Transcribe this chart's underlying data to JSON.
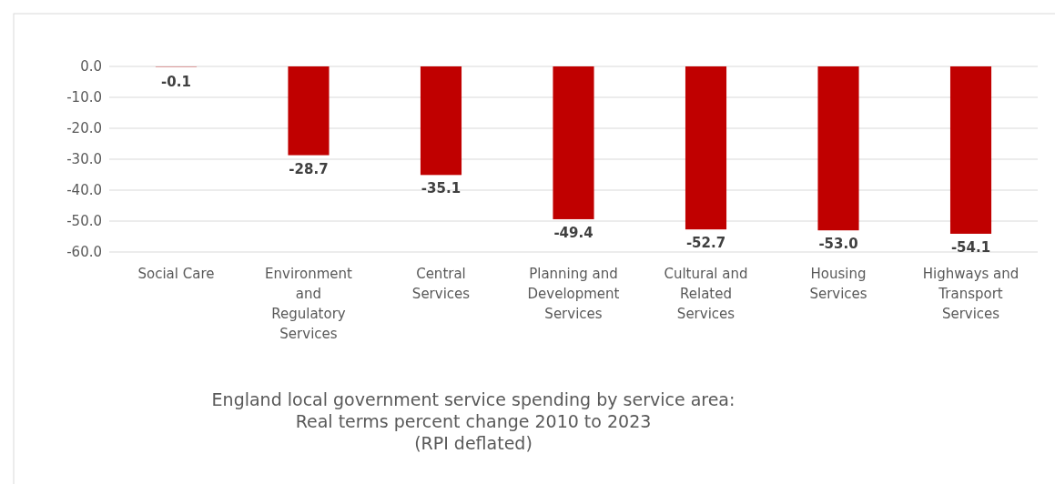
{
  "chart_data": {
    "type": "bar",
    "title": "England local government service spending by service area:\nReal terms percent change 2010 to 2023\n(RPI deflated)",
    "categories": [
      "Social Care",
      "Environment and Regulatory Services",
      "Central Services",
      "Planning and Development Services",
      "Cultural and Related Services",
      "Housing Services",
      "Highways and Transport Services"
    ],
    "values": [
      -0.1,
      -28.7,
      -35.1,
      -49.4,
      -52.7,
      -53.0,
      -54.1
    ],
    "value_labels": [
      "-0.1",
      "-28.7",
      "-35.1",
      "-49.4",
      "-52.7",
      "-53.0",
      "-54.1"
    ],
    "color": "#c00000",
    "ylim": [
      -60,
      0
    ],
    "yticks": [
      {
        "value": 0,
        "label": "0.0"
      },
      {
        "value": -10,
        "label": "-10.0"
      },
      {
        "value": -20,
        "label": "-20.0"
      },
      {
        "value": -30,
        "label": "-30.0"
      },
      {
        "value": -40,
        "label": "-40.0"
      },
      {
        "value": -50,
        "label": "-50.0"
      },
      {
        "value": -60,
        "label": "-60.0"
      }
    ],
    "grid": true
  }
}
